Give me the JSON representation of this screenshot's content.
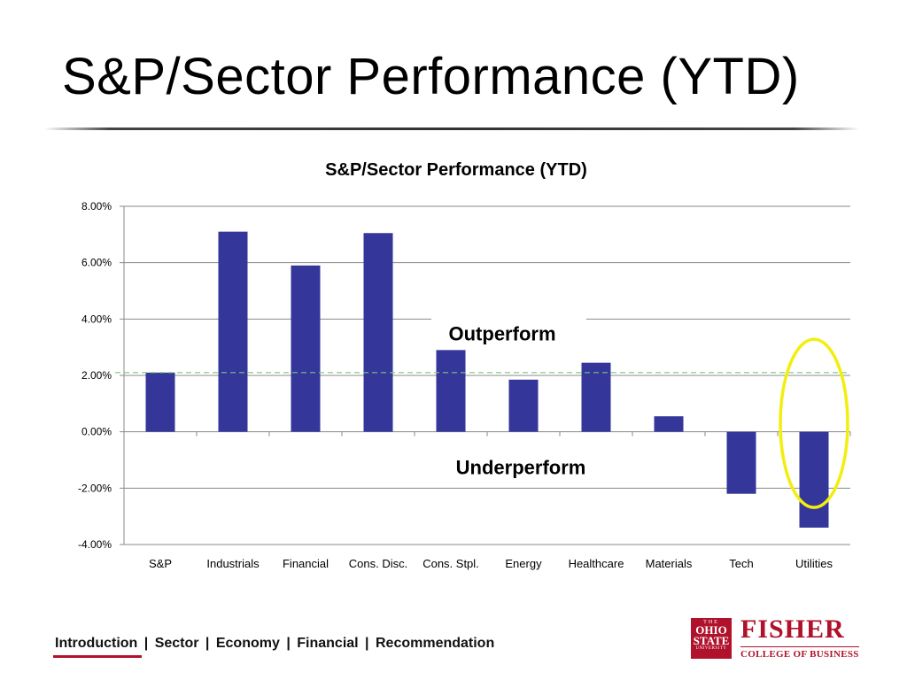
{
  "slide": {
    "title": "S&P/Sector Performance (YTD)"
  },
  "chart_data": {
    "type": "bar",
    "title": "S&P/Sector Performance (YTD)",
    "categories": [
      "S&P",
      "Industrials",
      "Financial",
      "Cons. Disc.",
      "Cons. Stpl.",
      "Energy",
      "Healthcare",
      "Materials",
      "Tech",
      "Utilities"
    ],
    "values": [
      2.1,
      7.1,
      5.9,
      7.05,
      2.9,
      1.85,
      2.45,
      0.55,
      -2.2,
      -3.4
    ],
    "ylim": [
      -4,
      8
    ],
    "yticks": [
      8,
      6,
      4,
      2,
      0,
      -2,
      -4
    ],
    "ytick_labels": [
      "8.00%",
      "6.00%",
      "4.00%",
      "2.00%",
      "0.00%",
      "-2.00%",
      "-4.00%"
    ],
    "grid": true,
    "reference_line": 2.1,
    "bar_color": "#35369a",
    "annotations": {
      "above": "Outperform",
      "below": "Underperform"
    },
    "highlight_category": "Utilities",
    "highlight_color": "#f2ee10"
  },
  "footer": {
    "nav": [
      {
        "label": "Introduction",
        "active": true
      },
      {
        "label": "Sector",
        "active": false
      },
      {
        "label": "Economy",
        "active": false
      },
      {
        "label": "Financial",
        "active": false
      },
      {
        "label": "Recommendation",
        "active": false
      }
    ],
    "separator": "|",
    "accent_color": "#b0112b"
  },
  "logo": {
    "seal_line1": "THE",
    "seal_line2a": "OHIO",
    "seal_line2b": "STATE",
    "seal_line3": "UNIVERSITY",
    "brand_name": "FISHER",
    "brand_sub": "COLLEGE OF BUSINESS"
  }
}
